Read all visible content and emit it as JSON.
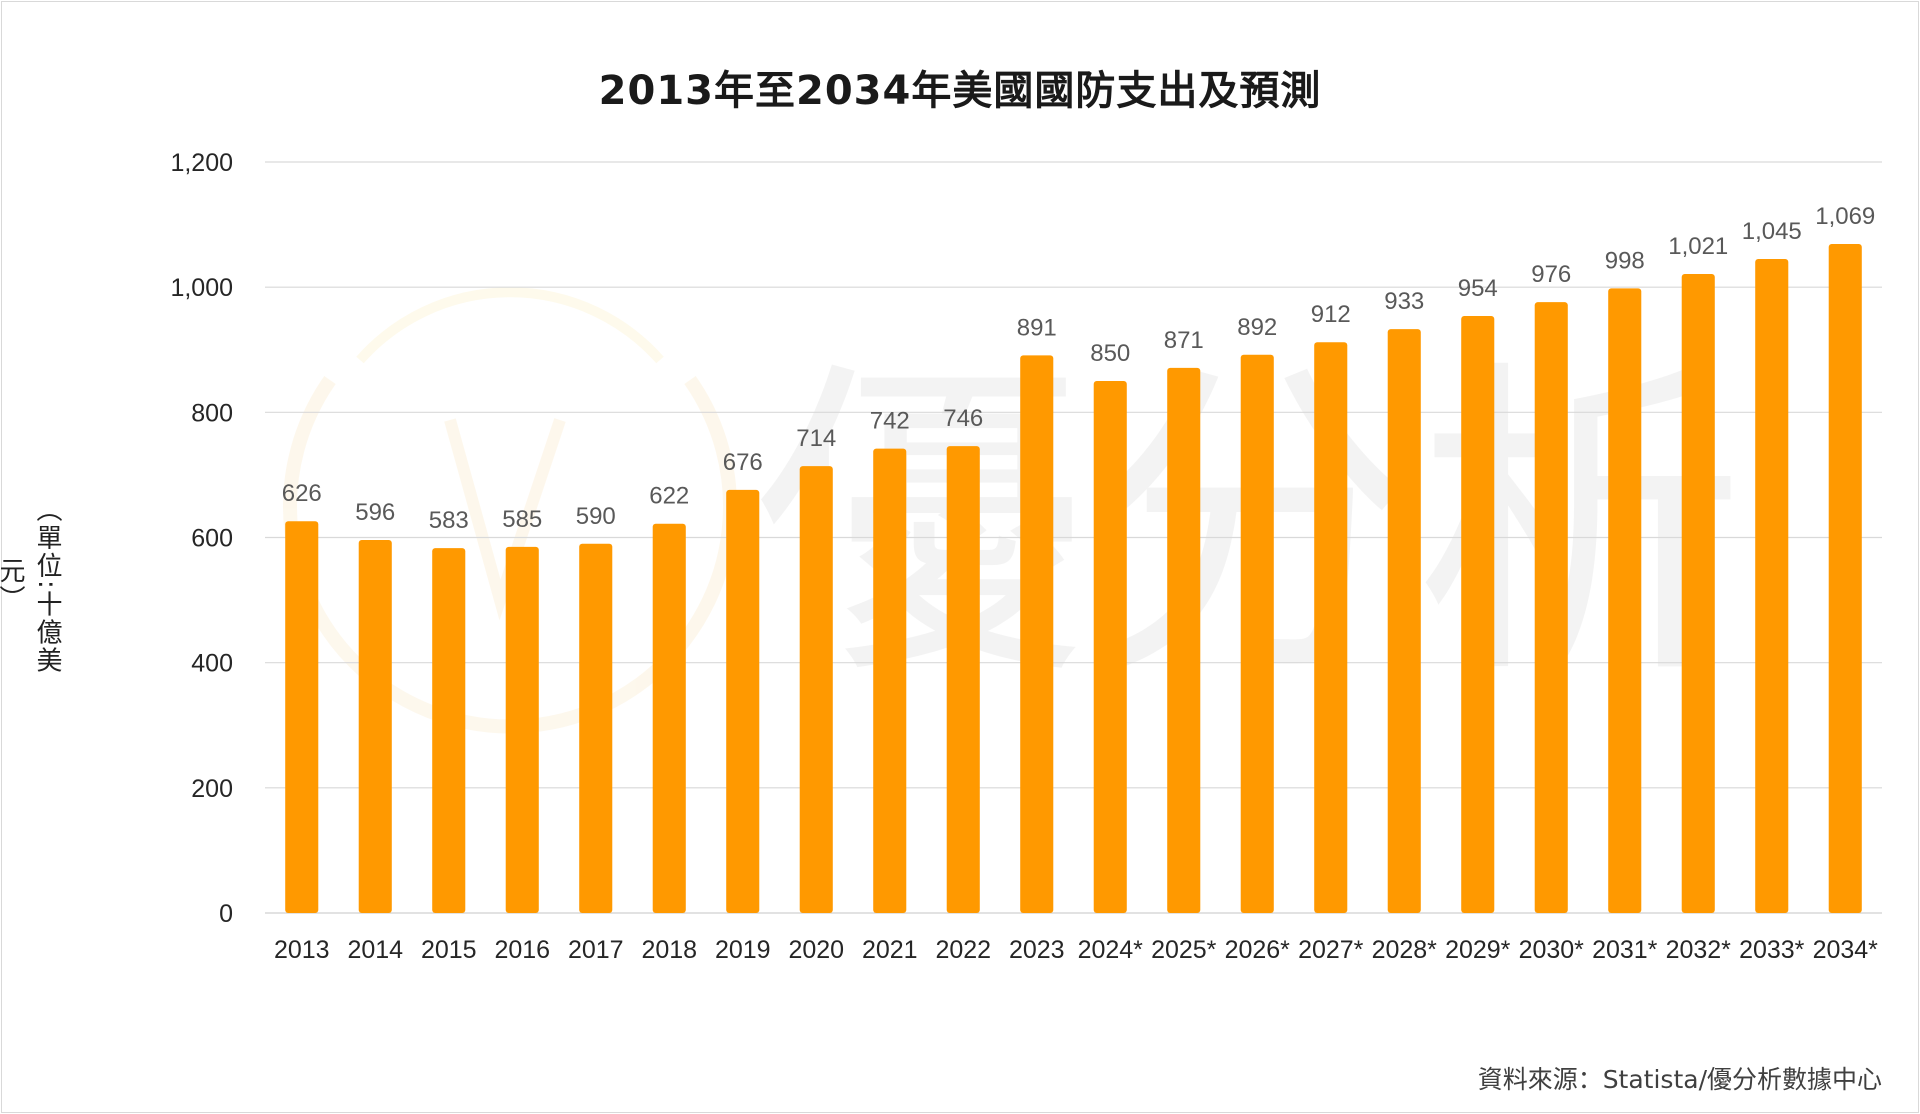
{
  "chart_data": {
    "type": "bar",
    "title": "2013年至2034年美國國防支出及預測",
    "ylabel": "（單位:十億美元）",
    "xlabel": "",
    "source": "資料來源：Statista/優分析數據中心",
    "ylim": [
      0,
      1200
    ],
    "ytick_labels": [
      "0",
      "200",
      "400",
      "600",
      "800",
      "1,000",
      "1,200"
    ],
    "categories": [
      "2013",
      "2014",
      "2015",
      "2016",
      "2017",
      "2018",
      "2019",
      "2020",
      "2021",
      "2022",
      "2023",
      "2024*",
      "2025*",
      "2026*",
      "2027*",
      "2028*",
      "2029*",
      "2030*",
      "2031*",
      "2032*",
      "2033*",
      "2034*"
    ],
    "values": [
      626,
      596,
      583,
      585,
      590,
      622,
      676,
      714,
      742,
      746,
      891,
      850,
      871,
      892,
      912,
      933,
      954,
      976,
      998,
      1021,
      1045,
      1069
    ],
    "value_labels": [
      "626",
      "596",
      "583",
      "585",
      "590",
      "622",
      "676",
      "714",
      "742",
      "746",
      "891",
      "850",
      "871",
      "892",
      "912",
      "933",
      "954",
      "976",
      "998",
      "1,021",
      "1,045",
      "1,069"
    ],
    "grid": true,
    "legend": "none",
    "bar_color": "#FF9900",
    "grid_color": "#D9D9D9"
  },
  "watermark": {
    "text": "優分析",
    "logo": "u-analysis-logo"
  }
}
